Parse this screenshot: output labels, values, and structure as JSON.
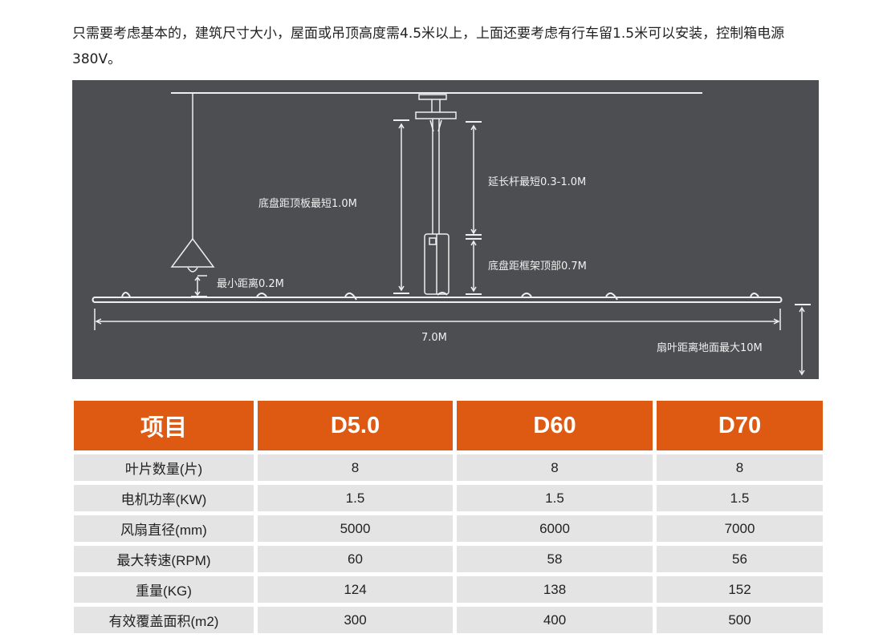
{
  "intro_text": "只需要考虑基本的，建筑尺寸大小，屋面或吊顶高度需4.5米以上，上面还要考虑有行车留1.5米可以安装，控制箱电源380V。",
  "diagram": {
    "labels": {
      "chassis_to_ceiling": "底盘距顶板最短1.0M",
      "extension_rod": "延长杆最短0.3-1.0M",
      "chassis_to_frame": "底盘距框架顶部0.7M",
      "min_distance": "最小距离0.2M",
      "span": "7.0M",
      "blade_to_ground": "扇叶距离地面最大10M"
    },
    "colors": {
      "background": "#4d4e52",
      "lines": "#f0f0f0"
    }
  },
  "table": {
    "headers": [
      "项目",
      "D5.0",
      "D60",
      "D70"
    ],
    "rows": [
      [
        "叶片数量(片)",
        "8",
        "8",
        "8"
      ],
      [
        "电机功率(KW)",
        "1.5",
        "1.5",
        "1.5"
      ],
      [
        "风扇直径(mm)",
        "5000",
        "6000",
        "7000"
      ],
      [
        "最大转速(RPM)",
        "60",
        "58",
        "56"
      ],
      [
        "重量(KG)",
        "124",
        "138",
        "152"
      ],
      [
        "有效覆盖面积(m2)",
        "300",
        "400",
        "500"
      ]
    ],
    "colors": {
      "header": "#de5a12",
      "cell": "#e4e4e4"
    }
  }
}
